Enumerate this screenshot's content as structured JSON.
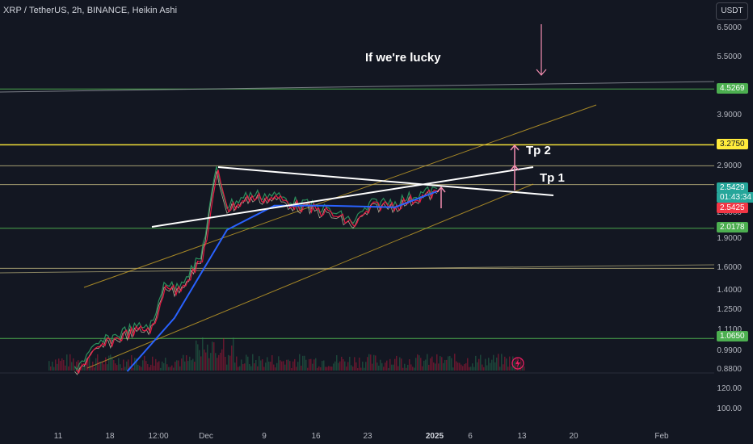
{
  "header": {
    "symbol_title": "XRP / TetherUS, 2h, BINANCE, Heikin Ashi",
    "currency_button": "USDT"
  },
  "annotations": {
    "if_lucky": "If we're lucky",
    "tp2": "Tp 2",
    "tp1": "Tp 1"
  },
  "badges": {
    "level_4_5269": "4.5269",
    "level_3_2750": "3.2750",
    "last_price": "2.5429",
    "countdown": "01:43:34",
    "ma_price": "2.5425",
    "level_2_0178": "2.0178",
    "level_1_0650": "1.0650"
  },
  "colors": {
    "background": "#131722",
    "green_level": "#4caf50",
    "yellow_level": "#ffeb3b",
    "khaki_level": "#d4c98a",
    "trend_white": "#ffffff",
    "channel_gold": "#c9a227",
    "ma_blue": "#2962ff",
    "ma_red": "#ff1744",
    "ha_green": "#2e9c63",
    "target_arrow": "#f48fb1",
    "last_price_badge": "#26a69a",
    "ma_badge": "#f23645",
    "yellow_badge": "#ffeb3b",
    "green_badge": "#4caf50",
    "lightning_icon": "#e91e63"
  },
  "chart_data": {
    "type": "line",
    "title": "XRP / TetherUS, 2h, BINANCE, Heikin Ashi",
    "price_scale": "log",
    "ylim": [
      0.88,
      6.5
    ],
    "y_ticks": [
      "6.5000",
      "5.5000",
      "3.9000",
      "2.9000",
      "2.0000",
      "1.9000",
      "1.6000",
      "1.4000",
      "1.2500",
      "1.1100",
      "0.9900",
      "0.8800"
    ],
    "volume_ticks": [
      "120.00",
      "100.00"
    ],
    "x_ticks": [
      "11",
      "18",
      "12:00",
      "Dec",
      "9",
      "16",
      "23",
      "2025",
      "6",
      "13",
      "20",
      "Feb"
    ],
    "horizontal_levels": [
      {
        "price": 4.5269,
        "color": "green"
      },
      {
        "price": 3.275,
        "color": "yellow"
      },
      {
        "price": 2.9,
        "color": "khaki"
      },
      {
        "price": 2.6,
        "color": "khaki"
      },
      {
        "price": 2.0178,
        "color": "green"
      },
      {
        "price": 1.6,
        "color": "khaki"
      },
      {
        "price": 1.065,
        "color": "green"
      }
    ],
    "last_price": 2.5429,
    "ma_value": 2.5425,
    "price_path": [
      {
        "t": "Nov 6",
        "price": 0.9
      },
      {
        "t": "Nov 11",
        "price": 1.04
      },
      {
        "t": "Nov 16",
        "price": 1.12
      },
      {
        "t": "Nov 21",
        "price": 1.16
      },
      {
        "t": "Nov 23",
        "price": 1.5
      },
      {
        "t": "Nov 25",
        "price": 1.42
      },
      {
        "t": "Nov 30",
        "price": 1.7
      },
      {
        "t": "Dec 3",
        "price": 2.85
      },
      {
        "t": "Dec 5",
        "price": 2.3
      },
      {
        "t": "Dec 9",
        "price": 2.45
      },
      {
        "t": "Dec 14",
        "price": 2.45
      },
      {
        "t": "Dec 18",
        "price": 2.35
      },
      {
        "t": "Dec 24",
        "price": 2.25
      },
      {
        "t": "Dec 29",
        "price": 2.1
      },
      {
        "t": "Jan 2",
        "price": 2.35
      },
      {
        "t": "Jan 6",
        "price": 2.35
      },
      {
        "t": "Jan 10",
        "price": 2.45
      },
      {
        "t": "Jan 14",
        "price": 2.54
      }
    ],
    "ma_blue_path": [
      {
        "t": "Nov 16",
        "price": 0.88
      },
      {
        "t": "Nov 25",
        "price": 1.2
      },
      {
        "t": "Dec 5",
        "price": 2.0
      },
      {
        "t": "Dec 14",
        "price": 2.3
      },
      {
        "t": "Dec 24",
        "price": 2.3
      },
      {
        "t": "Jan 6",
        "price": 2.28
      },
      {
        "t": "Jan 14",
        "price": 2.5
      }
    ]
  }
}
